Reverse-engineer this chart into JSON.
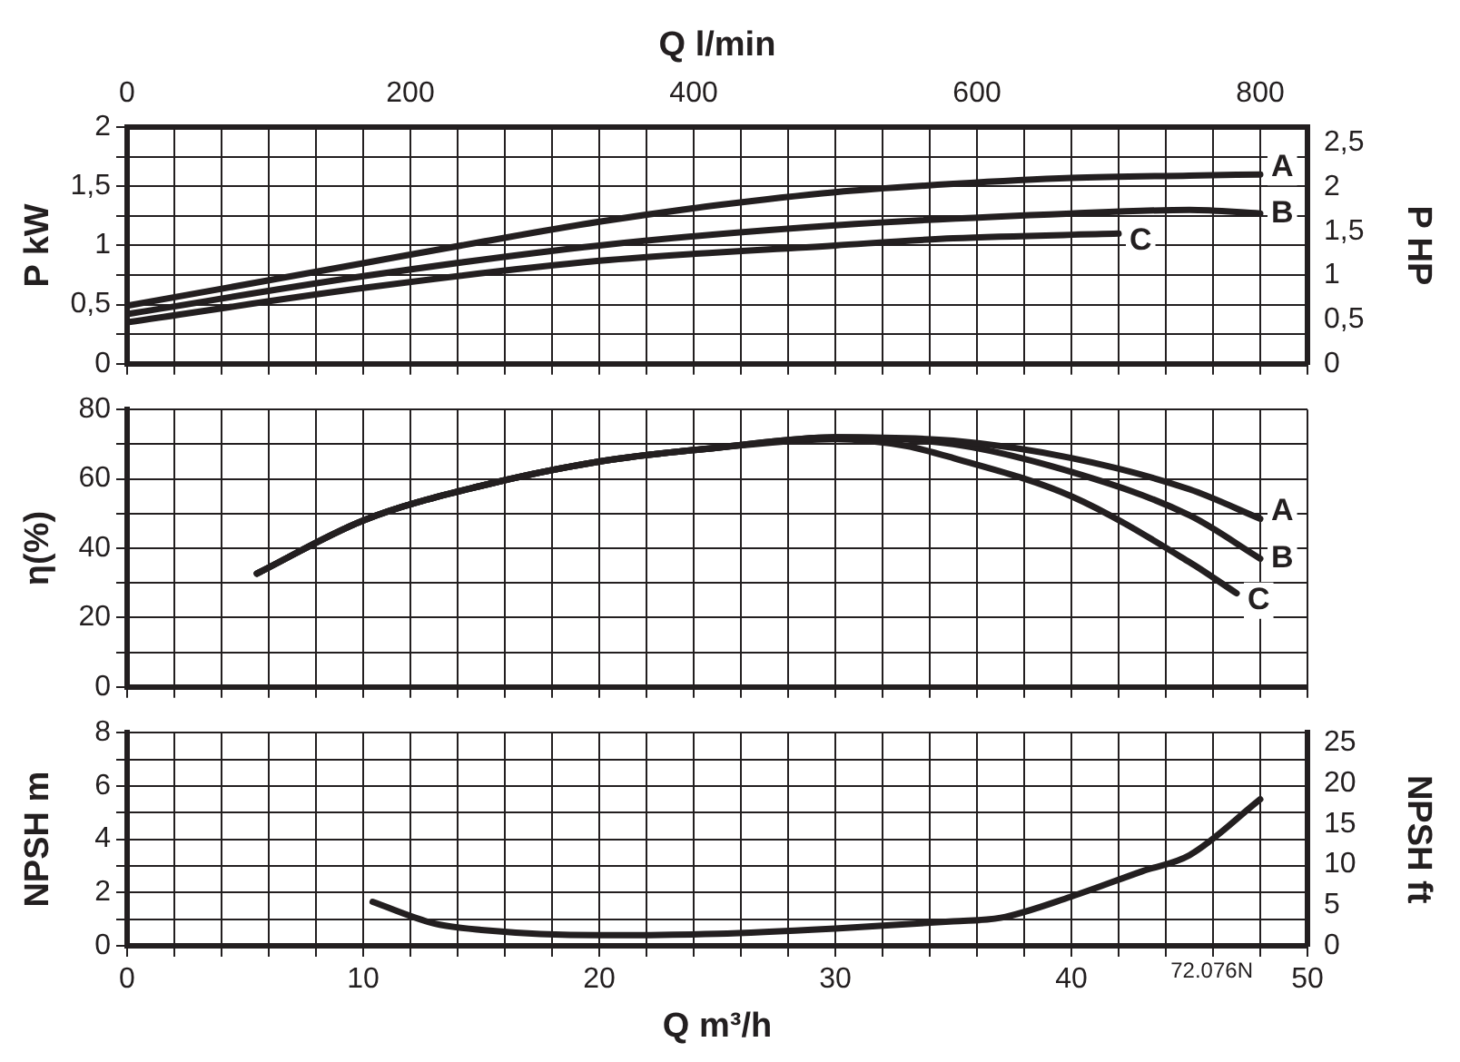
{
  "chart_data": [
    {
      "type": "line",
      "x2label": "Q l/min",
      "ylabel": "P kW",
      "y2label": "P HP",
      "xlim": [
        0,
        50
      ],
      "x2lim": [
        0,
        833.3
      ],
      "ylim": [
        0,
        2
      ],
      "y2lim": [
        0,
        2.68
      ],
      "grid": true,
      "tick_labels": "y",
      "marker": "none",
      "xticks": [
        0,
        {
          "value": 2,
          "label": null
        },
        {
          "value": 4,
          "label": null
        },
        {
          "value": 6,
          "label": null
        },
        {
          "value": 8,
          "label": null
        },
        10,
        {
          "value": 12,
          "label": null
        },
        {
          "value": 14,
          "label": null
        },
        {
          "value": 16,
          "label": null
        },
        {
          "value": 18,
          "label": null
        },
        20,
        {
          "value": 22,
          "label": null
        },
        {
          "value": 24,
          "label": null
        },
        {
          "value": 26,
          "label": null
        },
        {
          "value": 28,
          "label": null
        },
        30,
        {
          "value": 32,
          "label": null
        },
        {
          "value": 34,
          "label": null
        },
        {
          "value": 36,
          "label": null
        },
        {
          "value": 38,
          "label": null
        },
        40,
        {
          "value": 42,
          "label": null
        },
        {
          "value": 44,
          "label": null
        },
        {
          "value": 46,
          "label": null
        },
        {
          "value": 48,
          "label": null
        },
        50
      ],
      "x2ticks": [
        0,
        200,
        400,
        600,
        800
      ],
      "yticks": [
        0,
        {
          "value": 0.25,
          "label": null
        },
        {
          "value": 0.5,
          "label": "0,5"
        },
        {
          "value": 0.75,
          "label": null
        },
        1,
        {
          "value": 1.25,
          "label": null
        },
        {
          "value": 1.5,
          "label": "1,5"
        },
        {
          "value": 1.75,
          "label": null
        },
        2
      ],
      "y2ticks": [
        0,
        {
          "value": 0.5,
          "label": "0,5"
        },
        1,
        {
          "value": 1.5,
          "label": "1,5"
        },
        2,
        {
          "value": 2.5,
          "label": "2,5"
        }
      ],
      "series": [
        {
          "name": "A",
          "color": "#231f20",
          "x": [
            0,
            5,
            10,
            15,
            20,
            25,
            30,
            35,
            40,
            45,
            48
          ],
          "values": [
            0.49,
            0.67,
            0.85,
            1.03,
            1.2,
            1.34,
            1.45,
            1.52,
            1.57,
            1.59,
            1.6
          ]
        },
        {
          "name": "B",
          "color": "#231f20",
          "x": [
            0,
            10,
            20,
            30,
            40,
            45,
            48
          ],
          "values": [
            0.42,
            0.74,
            1.0,
            1.17,
            1.27,
            1.3,
            1.27
          ]
        },
        {
          "name": "C",
          "color": "#231f20",
          "x": [
            0,
            10,
            20,
            30,
            35,
            42
          ],
          "values": [
            0.35,
            0.64,
            0.87,
            1.0,
            1.06,
            1.1
          ]
        }
      ]
    },
    {
      "type": "line",
      "ylabel": "η(%)",
      "xlim": [
        0,
        50
      ],
      "ylim": [
        0,
        80
      ],
      "grid": true,
      "tick_labels": "y",
      "marker": "none",
      "xticks": [
        0,
        {
          "value": 2,
          "label": null
        },
        {
          "value": 4,
          "label": null
        },
        {
          "value": 6,
          "label": null
        },
        {
          "value": 8,
          "label": null
        },
        10,
        {
          "value": 12,
          "label": null
        },
        {
          "value": 14,
          "label": null
        },
        {
          "value": 16,
          "label": null
        },
        {
          "value": 18,
          "label": null
        },
        20,
        {
          "value": 22,
          "label": null
        },
        {
          "value": 24,
          "label": null
        },
        {
          "value": 26,
          "label": null
        },
        {
          "value": 28,
          "label": null
        },
        30,
        {
          "value": 32,
          "label": null
        },
        {
          "value": 34,
          "label": null
        },
        {
          "value": 36,
          "label": null
        },
        {
          "value": 38,
          "label": null
        },
        40,
        {
          "value": 42,
          "label": null
        },
        {
          "value": 44,
          "label": null
        },
        {
          "value": 46,
          "label": null
        },
        {
          "value": 48,
          "label": null
        },
        50
      ],
      "yticks": [
        0,
        {
          "value": 10,
          "label": null
        },
        20,
        {
          "value": 30,
          "label": null
        },
        40,
        {
          "value": 50,
          "label": null
        },
        60,
        {
          "value": 70,
          "label": null
        },
        80
      ],
      "series": [
        {
          "name": "A",
          "color": "#231f20",
          "x": [
            5.5,
            10,
            15,
            20,
            25,
            30,
            35,
            40,
            45,
            48
          ],
          "values": [
            32.7,
            48,
            58,
            65,
            69,
            72,
            71,
            66,
            57,
            48.5
          ]
        },
        {
          "name": "B",
          "color": "#231f20",
          "x": [
            5.5,
            10,
            15,
            20,
            25,
            30,
            35,
            40,
            45,
            48
          ],
          "values": [
            32.7,
            48,
            58,
            65,
            69,
            72,
            70,
            62,
            49.5,
            37
          ]
        },
        {
          "name": "C",
          "color": "#231f20",
          "x": [
            5.5,
            10,
            15,
            20,
            25,
            30,
            33,
            35,
            40,
            45,
            47
          ],
          "values": [
            32.7,
            48,
            58,
            65,
            69,
            71.5,
            69.5,
            66,
            55,
            36,
            27
          ]
        }
      ]
    },
    {
      "type": "line",
      "xlabel": "Q m³/h",
      "ylabel": "NPSH m",
      "y2label": "NPSH ft",
      "xlim": [
        0,
        50
      ],
      "ylim": [
        0,
        8
      ],
      "y2lim": [
        0,
        26.25
      ],
      "grid": true,
      "marker": "none",
      "xticks": [
        0,
        {
          "value": 2,
          "label": null
        },
        {
          "value": 4,
          "label": null
        },
        {
          "value": 6,
          "label": null
        },
        {
          "value": 8,
          "label": null
        },
        10,
        {
          "value": 12,
          "label": null
        },
        {
          "value": 14,
          "label": null
        },
        {
          "value": 16,
          "label": null
        },
        {
          "value": 18,
          "label": null
        },
        20,
        {
          "value": 22,
          "label": null
        },
        {
          "value": 24,
          "label": null
        },
        {
          "value": 26,
          "label": null
        },
        {
          "value": 28,
          "label": null
        },
        30,
        {
          "value": 32,
          "label": null
        },
        {
          "value": 34,
          "label": null
        },
        {
          "value": 36,
          "label": null
        },
        {
          "value": 38,
          "label": null
        },
        40,
        {
          "value": 42,
          "label": null
        },
        {
          "value": 44,
          "label": null
        },
        {
          "value": 46,
          "label": null
        },
        {
          "value": 48,
          "label": null
        },
        50
      ],
      "yticks": [
        0,
        {
          "value": 1,
          "label": null
        },
        2,
        {
          "value": 3,
          "label": null
        },
        4,
        {
          "value": 5,
          "label": null
        },
        6,
        {
          "value": 7,
          "label": null
        },
        8
      ],
      "y2ticks": [
        0,
        5,
        10,
        15,
        20,
        25
      ],
      "annotations": [
        "72.076N"
      ],
      "series": [
        {
          "color": "#231f20",
          "x": [
            10.4,
            13,
            15,
            20,
            25,
            30,
            35,
            37,
            40,
            43,
            45,
            48
          ],
          "values": [
            1.65,
            0.84,
            0.6,
            0.4,
            0.45,
            0.65,
            0.92,
            1.05,
            1.85,
            2.8,
            3.4,
            5.5
          ]
        }
      ]
    }
  ]
}
